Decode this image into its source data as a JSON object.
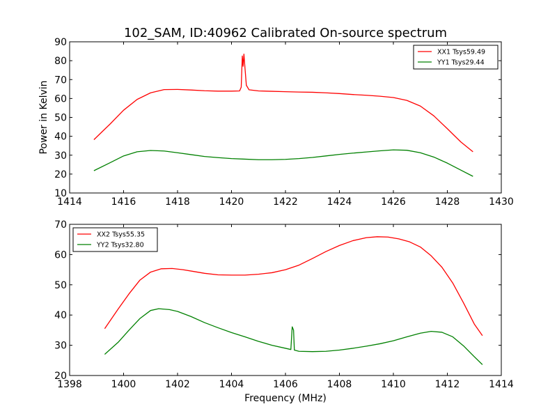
{
  "figure": {
    "title": "102_SAM, ID:40962 Calibrated On-source spectrum"
  },
  "chart_data": [
    {
      "type": "line",
      "title": "102_SAM, ID:40962 Calibrated On-source spectrum",
      "xlabel": "",
      "ylabel": "Power in Kelvin",
      "xlim": [
        1414,
        1430
      ],
      "ylim": [
        10,
        90
      ],
      "xticks": [
        1414,
        1416,
        1418,
        1420,
        1422,
        1424,
        1426,
        1428,
        1430
      ],
      "yticks": [
        10,
        20,
        30,
        40,
        50,
        60,
        70,
        80,
        90
      ],
      "legend_position": "top-right",
      "grid": false,
      "series": [
        {
          "name": "XX1 Tsys59.49",
          "color": "#ff0000",
          "points": [
            [
              1414.9,
              38.2
            ],
            [
              1415.5,
              46.5
            ],
            [
              1416.0,
              53.8
            ],
            [
              1416.5,
              59.5
            ],
            [
              1417.0,
              63.0
            ],
            [
              1417.5,
              64.7
            ],
            [
              1418.0,
              64.8
            ],
            [
              1418.5,
              64.5
            ],
            [
              1419.0,
              64.1
            ],
            [
              1419.5,
              63.9
            ],
            [
              1420.0,
              63.9
            ],
            [
              1420.3,
              64.0
            ],
            [
              1420.36,
              66.0
            ],
            [
              1420.4,
              82.5
            ],
            [
              1420.43,
              77.0
            ],
            [
              1420.46,
              83.5
            ],
            [
              1420.5,
              76.0
            ],
            [
              1420.55,
              67.0
            ],
            [
              1420.65,
              64.6
            ],
            [
              1421.0,
              64.0
            ],
            [
              1421.5,
              63.8
            ],
            [
              1422.0,
              63.6
            ],
            [
              1422.5,
              63.4
            ],
            [
              1423.0,
              63.3
            ],
            [
              1423.5,
              63.0
            ],
            [
              1424.0,
              62.6
            ],
            [
              1424.5,
              62.1
            ],
            [
              1425.0,
              61.7
            ],
            [
              1425.5,
              61.2
            ],
            [
              1426.0,
              60.5
            ],
            [
              1426.5,
              59.0
            ],
            [
              1427.0,
              56.0
            ],
            [
              1427.5,
              50.8
            ],
            [
              1428.0,
              44.0
            ],
            [
              1428.5,
              37.0
            ],
            [
              1428.95,
              31.8
            ]
          ]
        },
        {
          "name": "YY1 Tsys29.44",
          "color": "#008000",
          "points": [
            [
              1414.9,
              21.8
            ],
            [
              1415.5,
              26.0
            ],
            [
              1416.0,
              29.6
            ],
            [
              1416.5,
              31.8
            ],
            [
              1417.0,
              32.5
            ],
            [
              1417.5,
              32.2
            ],
            [
              1418.0,
              31.3
            ],
            [
              1418.5,
              30.3
            ],
            [
              1419.0,
              29.3
            ],
            [
              1419.5,
              28.7
            ],
            [
              1420.0,
              28.2
            ],
            [
              1420.5,
              27.9
            ],
            [
              1421.0,
              27.6
            ],
            [
              1421.5,
              27.6
            ],
            [
              1422.0,
              27.8
            ],
            [
              1422.5,
              28.2
            ],
            [
              1423.0,
              28.8
            ],
            [
              1423.5,
              29.6
            ],
            [
              1424.0,
              30.4
            ],
            [
              1424.5,
              31.1
            ],
            [
              1425.0,
              31.7
            ],
            [
              1425.5,
              32.3
            ],
            [
              1426.0,
              32.8
            ],
            [
              1426.5,
              32.6
            ],
            [
              1427.0,
              31.3
            ],
            [
              1427.5,
              29.0
            ],
            [
              1428.0,
              25.8
            ],
            [
              1428.5,
              22.1
            ],
            [
              1428.95,
              18.8
            ]
          ]
        }
      ]
    },
    {
      "type": "line",
      "title": "",
      "xlabel": "Frequency (MHz)",
      "ylabel": "",
      "xlim": [
        1398,
        1414
      ],
      "ylim": [
        20,
        70
      ],
      "xticks": [
        1398,
        1400,
        1402,
        1404,
        1406,
        1408,
        1410,
        1412,
        1414
      ],
      "yticks": [
        20,
        30,
        40,
        50,
        60,
        70
      ],
      "legend_position": "top-left",
      "grid": false,
      "series": [
        {
          "name": "XX2 Tsys55.35",
          "color": "#ff0000",
          "points": [
            [
              1399.3,
              35.5
            ],
            [
              1399.8,
              42.0
            ],
            [
              1400.2,
              47.0
            ],
            [
              1400.6,
              51.5
            ],
            [
              1401.0,
              54.2
            ],
            [
              1401.4,
              55.3
            ],
            [
              1401.8,
              55.4
            ],
            [
              1402.2,
              55.0
            ],
            [
              1402.6,
              54.4
            ],
            [
              1403.0,
              53.8
            ],
            [
              1403.5,
              53.3
            ],
            [
              1404.0,
              53.2
            ],
            [
              1404.5,
              53.2
            ],
            [
              1405.0,
              53.5
            ],
            [
              1405.5,
              54.0
            ],
            [
              1406.0,
              55.0
            ],
            [
              1406.5,
              56.5
            ],
            [
              1407.0,
              58.7
            ],
            [
              1407.5,
              61.0
            ],
            [
              1408.0,
              63.0
            ],
            [
              1408.5,
              64.6
            ],
            [
              1409.0,
              65.6
            ],
            [
              1409.4,
              65.9
            ],
            [
              1409.8,
              65.8
            ],
            [
              1410.2,
              65.2
            ],
            [
              1410.6,
              64.2
            ],
            [
              1411.0,
              62.5
            ],
            [
              1411.4,
              59.6
            ],
            [
              1411.8,
              55.8
            ],
            [
              1412.2,
              50.6
            ],
            [
              1412.6,
              44.0
            ],
            [
              1413.0,
              37.0
            ],
            [
              1413.3,
              33.2
            ]
          ]
        },
        {
          "name": "YY2 Tsys32.80",
          "color": "#008000",
          "points": [
            [
              1399.3,
              27.0
            ],
            [
              1399.8,
              31.0
            ],
            [
              1400.2,
              35.0
            ],
            [
              1400.6,
              38.8
            ],
            [
              1401.0,
              41.5
            ],
            [
              1401.3,
              42.1
            ],
            [
              1401.7,
              41.8
            ],
            [
              1402.0,
              41.2
            ],
            [
              1402.5,
              39.5
            ],
            [
              1403.0,
              37.5
            ],
            [
              1403.5,
              35.8
            ],
            [
              1404.0,
              34.2
            ],
            [
              1404.5,
              32.8
            ],
            [
              1405.0,
              31.3
            ],
            [
              1405.5,
              30.0
            ],
            [
              1406.0,
              29.0
            ],
            [
              1406.2,
              28.6
            ],
            [
              1406.25,
              36.1
            ],
            [
              1406.3,
              35.0
            ],
            [
              1406.33,
              28.4
            ],
            [
              1406.5,
              28.0
            ],
            [
              1407.0,
              27.9
            ],
            [
              1407.5,
              28.0
            ],
            [
              1408.0,
              28.4
            ],
            [
              1408.5,
              29.0
            ],
            [
              1409.0,
              29.7
            ],
            [
              1409.5,
              30.5
            ],
            [
              1410.0,
              31.5
            ],
            [
              1410.5,
              32.8
            ],
            [
              1411.0,
              34.0
            ],
            [
              1411.4,
              34.6
            ],
            [
              1411.8,
              34.3
            ],
            [
              1412.2,
              32.8
            ],
            [
              1412.6,
              29.8
            ],
            [
              1413.0,
              26.2
            ],
            [
              1413.3,
              23.6
            ]
          ]
        }
      ]
    }
  ]
}
